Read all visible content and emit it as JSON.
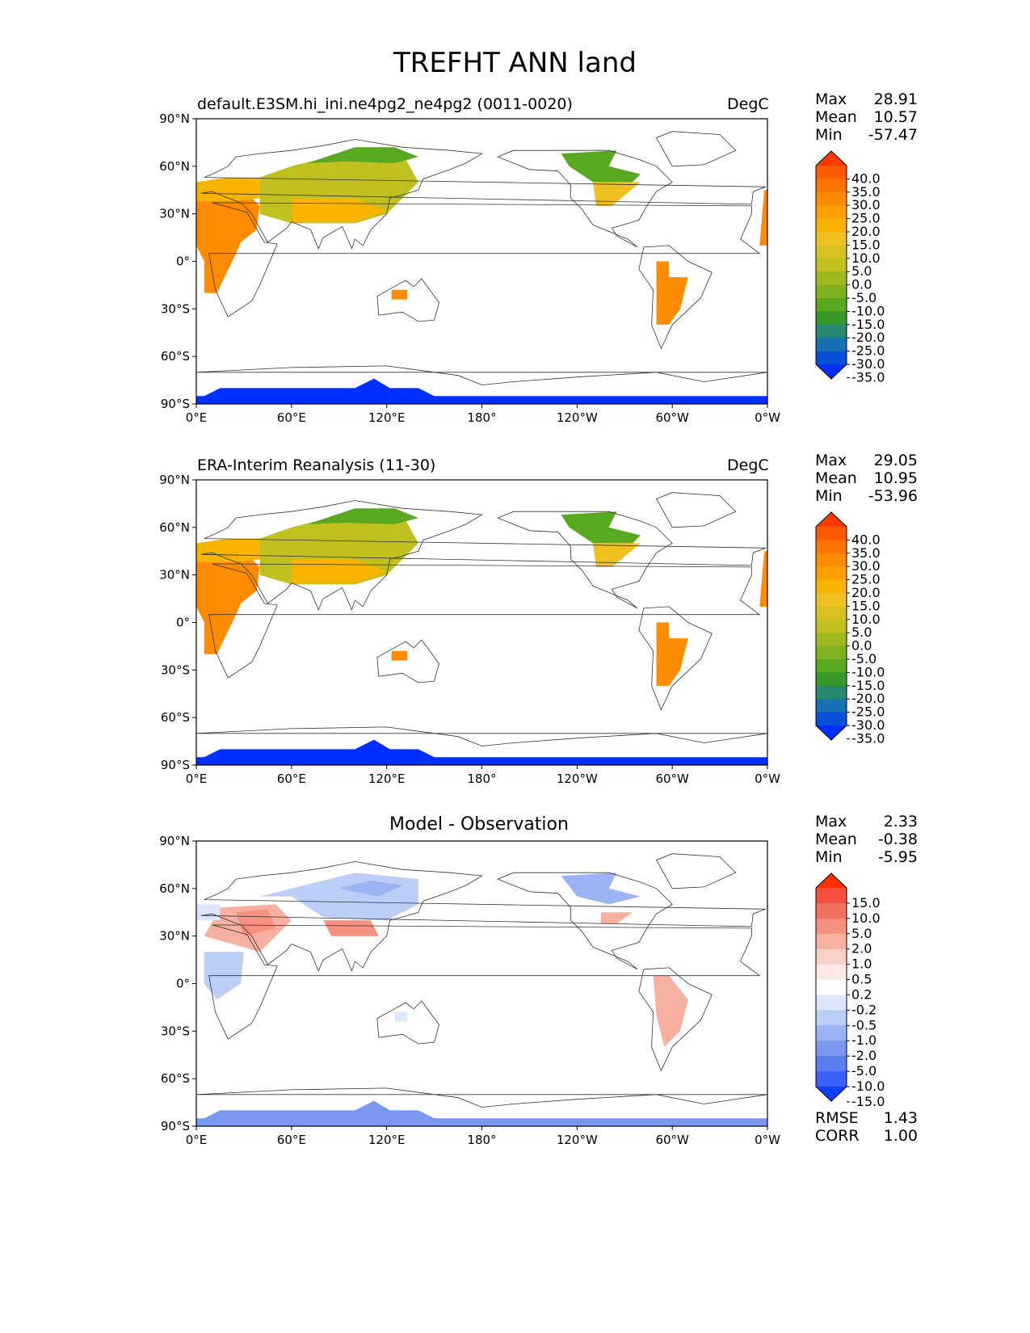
{
  "figure_title": "TREFHT ANN land",
  "panels": [
    {
      "title_left": "default.E3SM.hi_ini.ne4pg2_ne4pg2 (0011-0020)",
      "title_center": "",
      "units": "DegC",
      "stats": [
        {
          "label": "Max",
          "value": "28.91"
        },
        {
          "label": "Mean",
          "value": "10.57"
        },
        {
          "label": "Min",
          "value": "-57.47"
        }
      ],
      "colorbar_levels": [
        "40.0",
        "35.0",
        "30.0",
        "25.0",
        "20.0",
        "15.0",
        "10.0",
        "5.0",
        "0.0",
        "-5.0",
        "-10.0",
        "-15.0",
        "-20.0",
        "-25.0",
        "-30.0",
        "-35.0"
      ],
      "colorbar_colors": [
        "#ff3a00",
        "#ff5a00",
        "#ff7400",
        "#ff8c00",
        "#ffa000",
        "#f8b400",
        "#f0c020",
        "#d8c020",
        "#c0c020",
        "#a0b820",
        "#80b020",
        "#58a820",
        "#389828",
        "#288870",
        "#1870b0",
        "#0850d8",
        "#0030ff"
      ]
    },
    {
      "title_left": "ERA-Interim Reanalysis (11-30)",
      "title_center": "",
      "units": "DegC",
      "stats": [
        {
          "label": "Max",
          "value": "29.05"
        },
        {
          "label": "Mean",
          "value": "10.95"
        },
        {
          "label": "Min",
          "value": "-53.96"
        }
      ],
      "colorbar_levels": [
        "40.0",
        "35.0",
        "30.0",
        "25.0",
        "20.0",
        "15.0",
        "10.0",
        "5.0",
        "0.0",
        "-5.0",
        "-10.0",
        "-15.0",
        "-20.0",
        "-25.0",
        "-30.0",
        "-35.0"
      ],
      "colorbar_colors": [
        "#ff3a00",
        "#ff5a00",
        "#ff7400",
        "#ff8c00",
        "#ffa000",
        "#f8b400",
        "#f0c020",
        "#d8c020",
        "#c0c020",
        "#a0b820",
        "#80b020",
        "#58a820",
        "#389828",
        "#288870",
        "#1870b0",
        "#0850d8",
        "#0030ff"
      ]
    },
    {
      "title_left": "",
      "title_center": "Model - Observation",
      "units": "",
      "stats": [
        {
          "label": "Max",
          "value": "2.33"
        },
        {
          "label": "Mean",
          "value": "-0.38"
        },
        {
          "label": "Min",
          "value": "-5.95"
        }
      ],
      "extra_stats": [
        {
          "label": "RMSE",
          "value": "1.43"
        },
        {
          "label": "CORR",
          "value": "1.00"
        }
      ],
      "colorbar_levels": [
        "15.0",
        "10.0",
        "5.0",
        "2.0",
        "1.0",
        "0.5",
        "0.2",
        "-0.2",
        "-0.5",
        "-1.0",
        "-2.0",
        "-5.0",
        "-10.0",
        "-15.0"
      ],
      "colorbar_colors": [
        "#ff3000",
        "#f85040",
        "#f07060",
        "#f89080",
        "#f8b0a0",
        "#f8d0c8",
        "#fce8e4",
        "#ffffff",
        "#dde6fc",
        "#bccdf8",
        "#9bb2f4",
        "#7a98f0",
        "#5a7df0",
        "#3a60f8",
        "#1040ff"
      ]
    }
  ],
  "map_axes": {
    "lat_labels": [
      "90°N",
      "60°N",
      "30°N",
      "0°",
      "30°S",
      "60°S",
      "90°S"
    ],
    "lon_labels": [
      "0°E",
      "60°E",
      "120°E",
      "180°",
      "120°W",
      "60°W",
      "0°W"
    ]
  }
}
